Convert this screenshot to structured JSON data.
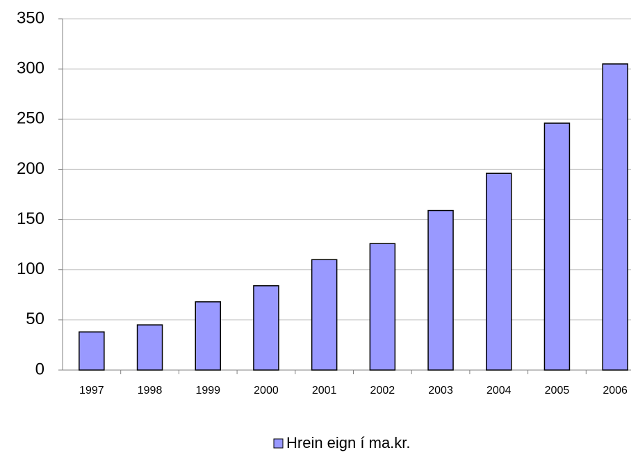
{
  "chart_data": {
    "type": "bar",
    "categories": [
      "1997",
      "1998",
      "1999",
      "2000",
      "2001",
      "2002",
      "2003",
      "2004",
      "2005",
      "2006"
    ],
    "series": [
      {
        "name": "Hrein eign í ma.kr.",
        "color": "#9999ff",
        "values": [
          38,
          45,
          68,
          84,
          110,
          126,
          159,
          196,
          246,
          305
        ]
      }
    ],
    "ylim": [
      0,
      350
    ],
    "yticks": [
      0,
      50,
      100,
      150,
      200,
      250,
      300,
      350
    ],
    "grid": true,
    "legend": "bottom"
  }
}
